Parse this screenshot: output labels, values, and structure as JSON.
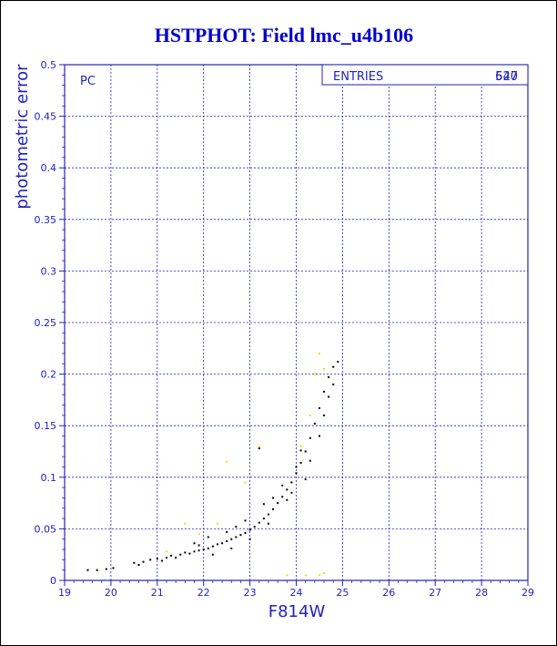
{
  "chart_data": {
    "type": "scatter",
    "title": "HSTPHOT: Field lmc_u4b106",
    "xlabel": "F814W",
    "ylabel": "photometric error",
    "xlim": [
      19,
      29
    ],
    "ylim": [
      0,
      0.5
    ],
    "xticks": [
      "19",
      "20",
      "21",
      "22",
      "23",
      "24",
      "25",
      "26",
      "27",
      "28",
      "29"
    ],
    "yticks": [
      "0",
      "0.05",
      "0.1",
      "0.15",
      "0.2",
      "0.25",
      "0.3",
      "0.35",
      "0.4",
      "0.45",
      "0.5"
    ],
    "grid": true,
    "panel_label": "PC",
    "stats": {
      "label": "ENTRIES",
      "values": [
        "547",
        "620"
      ]
    },
    "colors": {
      "title": "#0000cc",
      "axes": "#2222bb",
      "grid": "#2222bb",
      "series_main": "#000000",
      "series_alt": "#ffd700"
    },
    "series": [
      {
        "color": "#000000",
        "points": [
          [
            19.5,
            0.01
          ],
          [
            19.7,
            0.01
          ],
          [
            19.9,
            0.011
          ],
          [
            20.05,
            0.012
          ],
          [
            20.5,
            0.017
          ],
          [
            20.6,
            0.015
          ],
          [
            20.7,
            0.018
          ],
          [
            20.85,
            0.02
          ],
          [
            21.0,
            0.021
          ],
          [
            21.1,
            0.019
          ],
          [
            21.2,
            0.022
          ],
          [
            21.3,
            0.024
          ],
          [
            21.4,
            0.022
          ],
          [
            21.5,
            0.025
          ],
          [
            21.6,
            0.027
          ],
          [
            21.7,
            0.026
          ],
          [
            21.8,
            0.028
          ],
          [
            21.9,
            0.029
          ],
          [
            22.0,
            0.03
          ],
          [
            22.1,
            0.031
          ],
          [
            22.2,
            0.033
          ],
          [
            22.3,
            0.035
          ],
          [
            22.4,
            0.036
          ],
          [
            22.5,
            0.038
          ],
          [
            22.6,
            0.04
          ],
          [
            22.7,
            0.042
          ],
          [
            22.8,
            0.044
          ],
          [
            22.9,
            0.046
          ],
          [
            23.0,
            0.049
          ],
          [
            23.1,
            0.052
          ],
          [
            23.2,
            0.056
          ],
          [
            23.3,
            0.06
          ],
          [
            23.4,
            0.064
          ],
          [
            23.5,
            0.069
          ],
          [
            23.6,
            0.075
          ],
          [
            23.7,
            0.081
          ],
          [
            23.8,
            0.088
          ],
          [
            23.9,
            0.095
          ],
          [
            24.0,
            0.104
          ],
          [
            24.1,
            0.114
          ],
          [
            24.2,
            0.125
          ],
          [
            24.3,
            0.138
          ],
          [
            24.4,
            0.152
          ],
          [
            24.5,
            0.167
          ],
          [
            24.6,
            0.183
          ],
          [
            24.7,
            0.197
          ],
          [
            24.8,
            0.207
          ],
          [
            24.9,
            0.212
          ],
          [
            21.8,
            0.036
          ],
          [
            22.1,
            0.042
          ],
          [
            22.5,
            0.047
          ],
          [
            22.9,
            0.058
          ],
          [
            23.3,
            0.074
          ],
          [
            23.7,
            0.092
          ],
          [
            24.1,
            0.126
          ],
          [
            24.3,
            0.116
          ],
          [
            22.2,
            0.025
          ],
          [
            22.6,
            0.031
          ],
          [
            23.0,
            0.04
          ],
          [
            23.4,
            0.055
          ],
          [
            23.8,
            0.078
          ],
          [
            24.2,
            0.098
          ],
          [
            24.5,
            0.14
          ],
          [
            24.7,
            0.178
          ],
          [
            23.2,
            0.128
          ],
          [
            21.9,
            0.034
          ],
          [
            22.7,
            0.052
          ],
          [
            23.5,
            0.08
          ],
          [
            24.6,
            0.16
          ],
          [
            24.8,
            0.19
          ],
          [
            23.9,
            0.085
          ],
          [
            24.0,
            0.11
          ]
        ]
      },
      {
        "color": "#ffd700",
        "points": [
          [
            21.2,
            0.028
          ],
          [
            21.6,
            0.055
          ],
          [
            21.9,
            0.045
          ],
          [
            22.5,
            0.115
          ],
          [
            23.2,
            0.13
          ],
          [
            23.8,
            0.005
          ],
          [
            24.2,
            0.005
          ],
          [
            24.5,
            0.005
          ],
          [
            24.6,
            0.007
          ],
          [
            24.4,
            0.2
          ],
          [
            24.3,
            0.16
          ],
          [
            24.6,
            0.205
          ],
          [
            24.1,
            0.13
          ],
          [
            22.9,
            0.095
          ],
          [
            24.5,
            0.22
          ],
          [
            22.3,
            0.055
          ]
        ]
      }
    ]
  }
}
